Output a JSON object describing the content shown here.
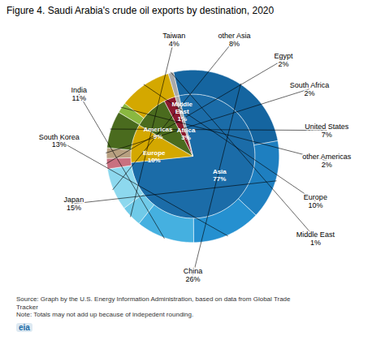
{
  "chart_data": [
    {
      "type": "pie",
      "title": "Figure 4. Saudi Arabia's crude oil exports by destination, 2020",
      "categories": [
        "Asia",
        "Europe",
        "Americas",
        "Africa",
        "Middle\nEast"
      ],
      "values": [
        77,
        10,
        9,
        3,
        1
      ],
      "value_labels": [
        "77%",
        "10%",
        "9%",
        "3%",
        "1%"
      ],
      "colors": [
        "#1b6ca8",
        "#d4a800",
        "#4a6b1e",
        "#8b1a2e",
        "#aaaaaa"
      ],
      "data_labels": true,
      "annotations": [
        "Source: Graph by the U.S. Energy Information Administration, based on data from Global Trade\nTracker\nNote: Totals may not add up because of indepedent rounding.",
        "eia"
      ]
    },
    {
      "type": "pie",
      "categories": [
        "China",
        "Japan",
        "South Korea",
        "India",
        "Taiwan",
        "other Asia",
        "Egypt",
        "South Africa",
        "United States",
        "other Americas",
        "Europe",
        "Middle East"
      ],
      "values": [
        26,
        15,
        13,
        11,
        4,
        8,
        2,
        2,
        7,
        2,
        10,
        1
      ],
      "value_labels": [
        "26%",
        "15%",
        "13%",
        "11%",
        "4%",
        "8%",
        "2%",
        "2%",
        "7%",
        "2%",
        "10%",
        "1%"
      ],
      "colors": [
        "#1565a0",
        "#1e7fc0",
        "#2590d0",
        "#45b0e0",
        "#70cae8",
        "#8dd8ee",
        "#c97080",
        "#b8a080",
        "#4a6b1e",
        "#8ab840",
        "#d4a800",
        "#aaaaaa"
      ],
      "data_labels": true
    }
  ]
}
